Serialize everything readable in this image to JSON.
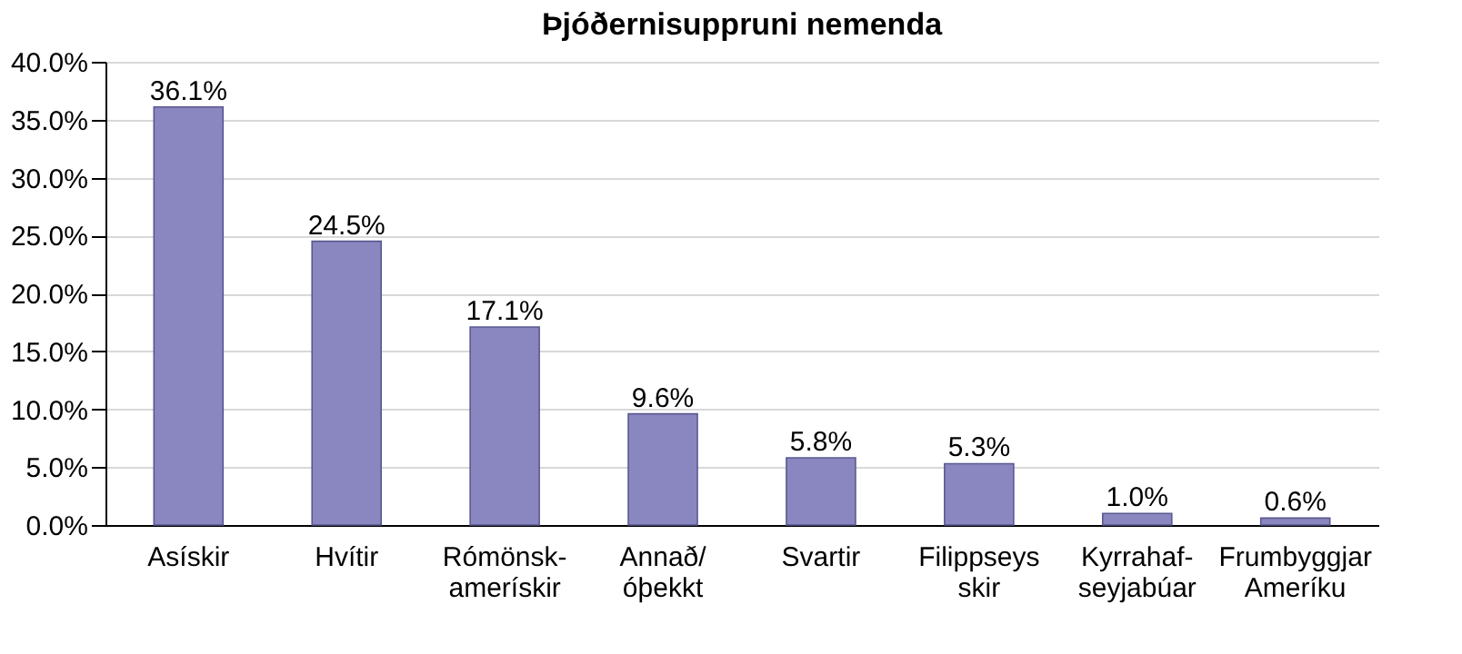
{
  "chart_data": {
    "type": "bar",
    "title": "Þjóðernisuppruni nemenda",
    "categories": [
      "Asískir",
      "Hvítir",
      "Rómönsk-\namerískir",
      "Annað/\nóþekkt",
      "Svartir",
      "Filippseys\nskir",
      "Kyrrahaf-\nseyjabúar",
      "Frumbyggjar\nAmeríku"
    ],
    "values": [
      36.1,
      24.5,
      17.1,
      9.6,
      5.8,
      5.3,
      1.0,
      0.6
    ],
    "value_labels": [
      "36.1%",
      "24.5%",
      "17.1%",
      "9.6%",
      "5.8%",
      "5.3%",
      "1.0%",
      "0.6%"
    ],
    "color": "#8a87c0",
    "ylim": [
      0,
      40
    ],
    "yticks": [
      {
        "value": 0,
        "label": "0.0%"
      },
      {
        "value": 5,
        "label": "5.0%"
      },
      {
        "value": 10,
        "label": "10.0%"
      },
      {
        "value": 15,
        "label": "15.0%"
      },
      {
        "value": 20,
        "label": "20.0%"
      },
      {
        "value": 25,
        "label": "25.0%"
      },
      {
        "value": 30,
        "label": "30.0%"
      },
      {
        "value": 35,
        "label": "35.0%"
      },
      {
        "value": 40,
        "label": "40.0%"
      }
    ],
    "grid": "y"
  }
}
